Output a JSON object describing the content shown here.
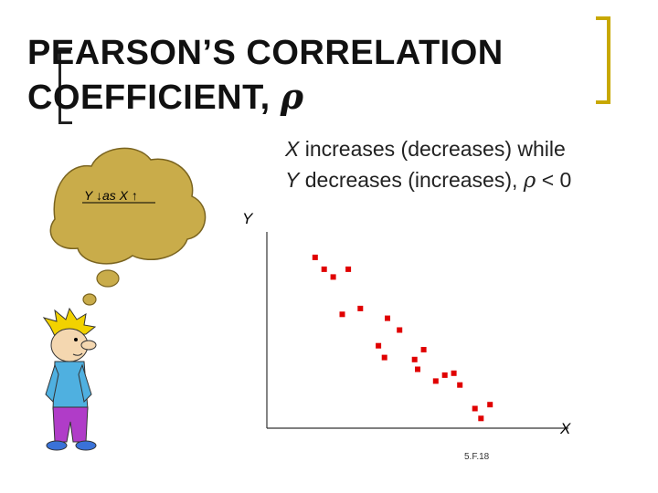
{
  "slide": {
    "title_line1": "PEARSON’S CORRELATION",
    "title_line2": "COEFFICIENT, ",
    "title_rho": "ρ",
    "sub_x": "X",
    "sub_line1_rest": " increases (decreases) while",
    "sub_y": "Y",
    "sub_line2_rest": " decreases (increases), ",
    "sub_rho": "ρ",
    "sub_relation": " < 0",
    "thought": "Y ↓as X ↑",
    "slide_number": "5.F.18"
  },
  "colors": {
    "points": "#e00000",
    "accent_bracket": "#c8a800",
    "cloud": "#c9ac4a",
    "cloud_edge": "#7a6420"
  },
  "chart_data": {
    "type": "scatter",
    "xlabel": "X",
    "ylabel": "Y",
    "xlim": [
      0,
      100
    ],
    "ylim": [
      0,
      100
    ],
    "grid": false,
    "points": [
      {
        "x": 16,
        "y": 87
      },
      {
        "x": 19,
        "y": 81
      },
      {
        "x": 22,
        "y": 77
      },
      {
        "x": 27,
        "y": 81
      },
      {
        "x": 25,
        "y": 58
      },
      {
        "x": 31,
        "y": 61
      },
      {
        "x": 44,
        "y": 50
      },
      {
        "x": 40,
        "y": 56
      },
      {
        "x": 37,
        "y": 42
      },
      {
        "x": 39,
        "y": 36
      },
      {
        "x": 52,
        "y": 40
      },
      {
        "x": 49,
        "y": 35
      },
      {
        "x": 50,
        "y": 30
      },
      {
        "x": 59,
        "y": 27
      },
      {
        "x": 62,
        "y": 28
      },
      {
        "x": 56,
        "y": 24
      },
      {
        "x": 64,
        "y": 22
      },
      {
        "x": 69,
        "y": 10
      },
      {
        "x": 74,
        "y": 12
      },
      {
        "x": 71,
        "y": 5
      }
    ]
  }
}
